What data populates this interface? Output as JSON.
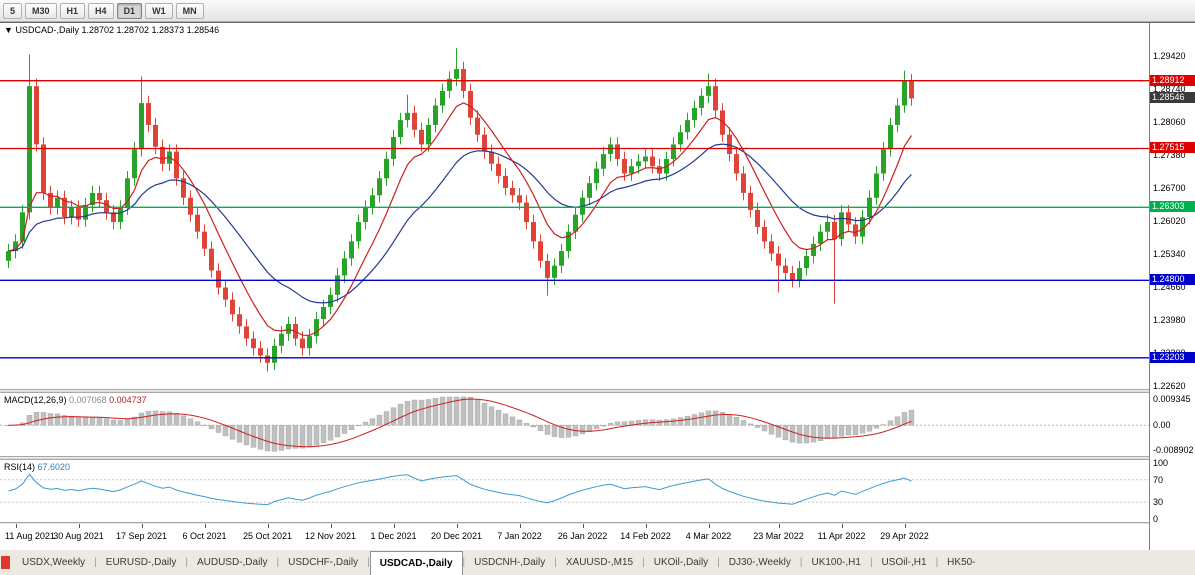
{
  "toolbar": {
    "timeframes": [
      "5",
      "M30",
      "H1",
      "H4",
      "D1",
      "W1",
      "MN"
    ],
    "active": "D1"
  },
  "chart": {
    "collapse_icon": "▼",
    "title": "USDCAD-,Daily",
    "ohlc": "1.28702 1.28702 1.28373 1.28546",
    "price_axis": [
      "1.29420",
      "1.28740",
      "1.28060",
      "1.27380",
      "1.26700",
      "1.26020",
      "1.25340",
      "1.24660",
      "1.23980",
      "1.23300",
      "1.22620"
    ],
    "current_price": "1.28546",
    "hlines": [
      {
        "price": 1.28912,
        "label": "1.28912",
        "color": "#dd0000"
      },
      {
        "price": 1.27515,
        "label": "1.27515",
        "color": "#dd0000"
      },
      {
        "price": 1.26303,
        "label": "1.26303",
        "color": "#00b050"
      },
      {
        "price": 1.248,
        "label": "1.24800",
        "color": "#0000cc"
      },
      {
        "price": 1.23203,
        "label": "1.23203",
        "color": "#0000cc"
      }
    ],
    "colors": {
      "up": "#28a428",
      "down": "#e04438",
      "ma_fast": "#cc2020",
      "ma_slow": "#243a8f",
      "current_badge": "#3a3a3a"
    }
  },
  "chart_data": {
    "type": "candlestick",
    "symbol": "USDCAD",
    "timeframe": "Daily",
    "price_range": [
      1.2256,
      1.301
    ],
    "first_open": 1.252,
    "closes": [
      1.254,
      1.256,
      1.262,
      1.288,
      1.276,
      1.266,
      1.263,
      1.265,
      1.261,
      1.263,
      1.2605,
      1.2635,
      1.266,
      1.2645,
      1.262,
      1.26,
      1.263,
      1.269,
      1.275,
      1.2845,
      1.28,
      1.2755,
      1.272,
      1.2745,
      1.269,
      1.265,
      1.2615,
      1.258,
      1.2545,
      1.25,
      1.2465,
      1.244,
      1.241,
      1.2385,
      1.236,
      1.234,
      1.2325,
      1.231,
      1.2345,
      1.237,
      1.239,
      1.236,
      1.234,
      1.2365,
      1.24,
      1.2425,
      1.245,
      1.249,
      1.2525,
      1.256,
      1.26,
      1.263,
      1.2655,
      1.269,
      1.273,
      1.2775,
      1.281,
      1.2825,
      1.279,
      1.276,
      1.28,
      1.284,
      1.287,
      1.2895,
      1.2915,
      1.287,
      1.2815,
      1.278,
      1.2745,
      1.272,
      1.2695,
      1.267,
      1.2655,
      1.264,
      1.26,
      1.256,
      1.252,
      1.2485,
      1.251,
      1.254,
      1.258,
      1.2615,
      1.265,
      1.268,
      1.271,
      1.274,
      1.276,
      1.273,
      1.27,
      1.2715,
      1.2725,
      1.2735,
      1.2715,
      1.27,
      1.273,
      1.276,
      1.2785,
      1.281,
      1.2835,
      1.286,
      1.288,
      1.283,
      1.278,
      1.274,
      1.27,
      1.266,
      1.2625,
      1.259,
      1.256,
      1.2535,
      1.251,
      1.2495,
      1.248,
      1.2505,
      1.253,
      1.2555,
      1.258,
      1.26,
      1.2565,
      1.262,
      1.2595,
      1.257,
      1.261,
      1.265,
      1.27,
      1.275,
      1.28,
      1.284,
      1.289,
      1.28546
    ],
    "spike_highs": {
      "3": 1.2945,
      "19": 1.29,
      "57": 1.2862,
      "64": 1.2958,
      "100": 1.2906,
      "128": 1.2912
    },
    "spike_lows": {
      "37": 1.2292,
      "77": 1.2448,
      "110": 1.2455,
      "118": 1.2432
    },
    "date_tick_indices": [
      1,
      10,
      19,
      28,
      37,
      46,
      55,
      64,
      73,
      82,
      91,
      100,
      110,
      119,
      128
    ]
  },
  "macd": {
    "name": "MACD(12,26,9)",
    "value_main": "0.007068",
    "value_signal": "0.004737",
    "axis_max": "0.009345",
    "axis_zero": "0.00",
    "axis_min": "-0.008902",
    "max": 0.009345,
    "min": -0.008902,
    "bar_color": "#c0c0c0",
    "signal_color": "#cc2020"
  },
  "rsi": {
    "name": "RSI(14)",
    "value": "67.6020",
    "axis": [
      "100",
      "70",
      "30",
      "0"
    ],
    "levels": [
      70,
      30
    ],
    "line_color": "#3d9bd0"
  },
  "date_axis": [
    "11 Aug 2021",
    "30 Aug 2021",
    "17 Sep 2021",
    "6 Oct 2021",
    "25 Oct 2021",
    "12 Nov 2021",
    "1 Dec 2021",
    "20 Dec 2021",
    "7 Jan 2022",
    "26 Jan 2022",
    "14 Feb 2022",
    "4 Mar 2022",
    "23 Mar 2022",
    "11 Apr 2022",
    "29 Apr 2022"
  ],
  "tabs": {
    "items": [
      "USDX,Weekly",
      "EURUSD-,Daily",
      "AUDUSD-,Daily",
      "USDCHF-,Daily",
      "USDCAD-,Daily",
      "USDCNH-,Daily",
      "XAUUSD-,M15",
      "UKOil-,Daily",
      "DJ30-,Weekly",
      "UK100-,H1",
      "USOil-,H1",
      "HK50-"
    ],
    "active": "USDCAD-,Daily"
  }
}
